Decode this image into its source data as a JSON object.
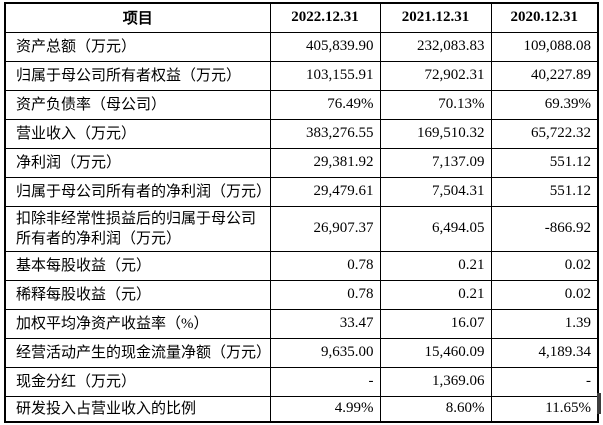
{
  "table": {
    "columns": [
      "项目",
      "2022.12.31",
      "2021.12.31",
      "2020.12.31"
    ],
    "rows": [
      {
        "label": "资产总额（万元）",
        "values": [
          "405,839.90",
          "232,083.83",
          "109,088.08"
        ]
      },
      {
        "label": "归属于母公司所有者权益（万元）",
        "values": [
          "103,155.91",
          "72,902.31",
          "40,227.89"
        ]
      },
      {
        "label": "资产负债率（母公司）",
        "values": [
          "76.49%",
          "70.13%",
          "69.39%"
        ]
      },
      {
        "label": "营业收入（万元）",
        "values": [
          "383,276.55",
          "169,510.32",
          "65,722.32"
        ]
      },
      {
        "label": "净利润（万元）",
        "values": [
          "29,381.92",
          "7,137.09",
          "551.12"
        ]
      },
      {
        "label": "归属于母公司所有者的净利润（万元）",
        "values": [
          "29,479.61",
          "7,504.31",
          "551.12"
        ]
      },
      {
        "label": "扣除非经常性损益后的归属于母公司所有者的净利润（万元）",
        "values": [
          "26,907.37",
          "6,494.05",
          "-866.92"
        ]
      },
      {
        "label": "基本每股收益（元）",
        "values": [
          "0.78",
          "0.21",
          "0.02"
        ]
      },
      {
        "label": "稀释每股收益（元）",
        "values": [
          "0.78",
          "0.21",
          "0.02"
        ]
      },
      {
        "label": "加权平均净资产收益率（%）",
        "values": [
          "33.47",
          "16.07",
          "1.39"
        ]
      },
      {
        "label": "经营活动产生的现金流量净额（万元）",
        "values": [
          "9,635.00",
          "15,460.09",
          "4,189.34"
        ]
      },
      {
        "label": "现金分红（万元）",
        "values": [
          "-",
          "1,369.06",
          "-"
        ]
      },
      {
        "label": "研发投入占营业收入的比例",
        "values": [
          "4.99%",
          "8.60%",
          "11.65%"
        ]
      }
    ]
  },
  "colors": {
    "text": "#000000",
    "border": "#000000",
    "background": "#ffffff",
    "artifact": "#3d3d3d"
  }
}
